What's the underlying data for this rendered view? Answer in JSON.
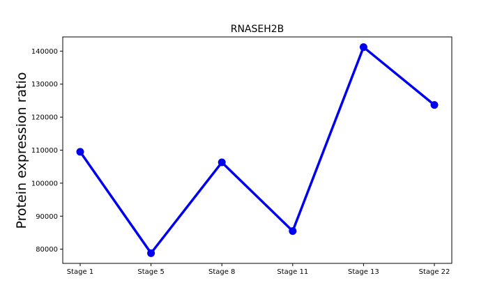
{
  "chart_data": {
    "type": "line",
    "title": "RNASEH2B",
    "xlabel": "",
    "ylabel": "Protein expression ratio",
    "categories": [
      "Stage 1",
      "Stage 5",
      "Stage 8",
      "Stage 11",
      "Stage 13",
      "Stage 22"
    ],
    "series": [
      {
        "values": [
          109500,
          78800,
          106300,
          85500,
          141200,
          123700
        ],
        "color": "#0000ee"
      }
    ],
    "ylim": [
      75700,
      144300
    ],
    "yticks": [
      80000,
      90000,
      100000,
      110000,
      120000,
      130000,
      140000
    ],
    "grid": false,
    "legend": "none"
  }
}
